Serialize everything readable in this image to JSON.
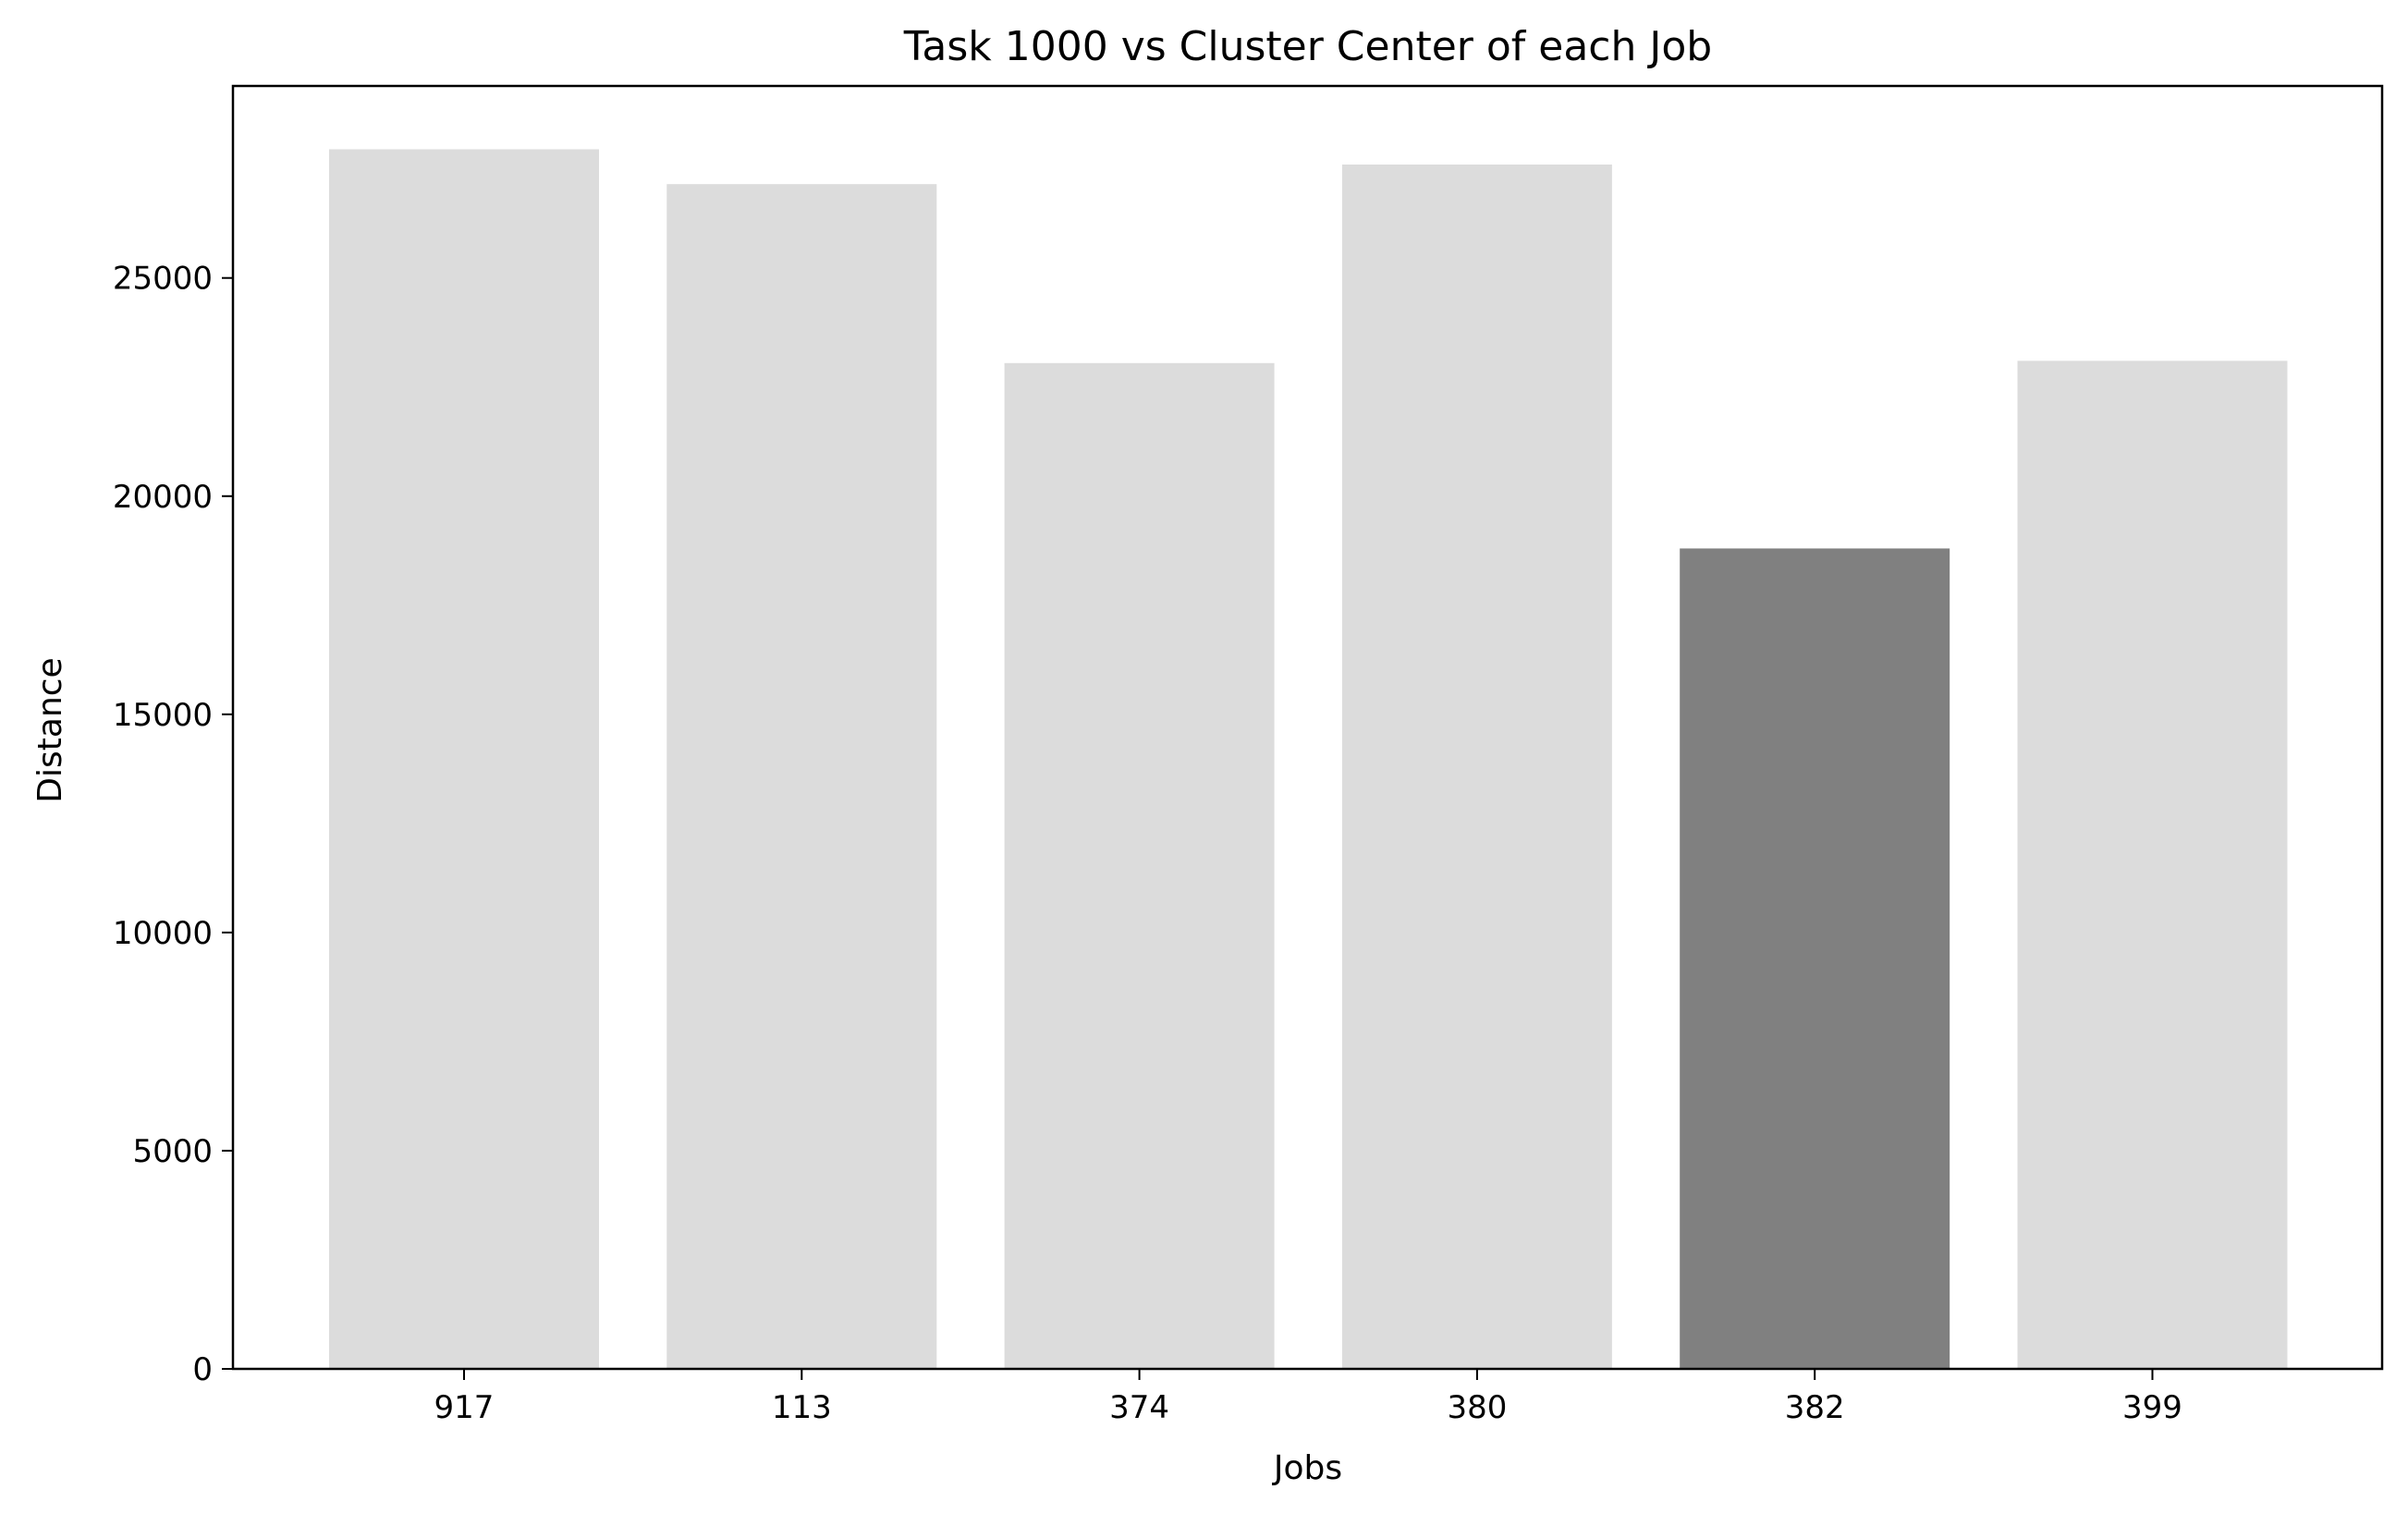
{
  "chart_data": {
    "type": "bar",
    "title": "Task 1000 vs Cluster Center of each Job",
    "xlabel": "Jobs",
    "ylabel": "Distance",
    "categories": [
      "917",
      "113",
      "374",
      "380",
      "382",
      "399"
    ],
    "values": [
      27950,
      27150,
      23050,
      27600,
      18800,
      23100
    ],
    "highlight_category": "382",
    "colors": {
      "bar": "#dcdcdc",
      "highlight": "#808080",
      "axis": "#000000",
      "background": "#ffffff"
    },
    "ylim": [
      0,
      29400
    ],
    "yticks": [
      0,
      5000,
      10000,
      15000,
      20000,
      25000
    ],
    "grid": false,
    "legend": "none"
  }
}
